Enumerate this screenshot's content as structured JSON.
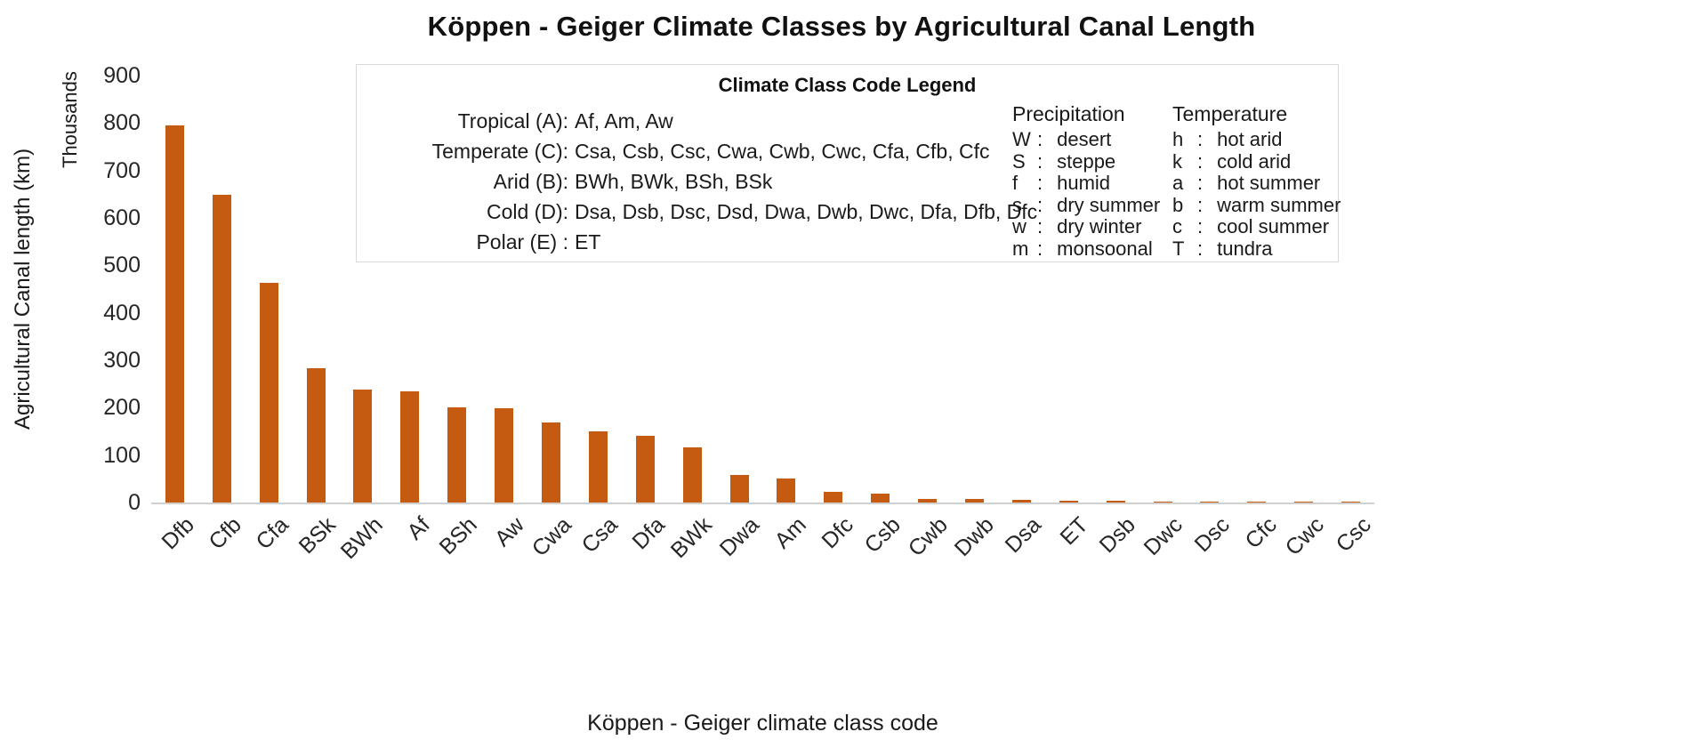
{
  "chart_data": {
    "type": "bar",
    "title": "Köppen - Geiger Climate Classes by Agricultural Canal Length",
    "xlabel": "Köppen - Geiger climate class code",
    "ylabel": "Agricultural Canal length (km)",
    "y_units_label": "Thousands",
    "ylim": [
      0,
      900
    ],
    "ytick_step": 100,
    "grid": false,
    "bar_color": "#C55A11",
    "categories": [
      "Dfb",
      "Cfb",
      "Cfa",
      "BSk",
      "BWh",
      "Af",
      "BSh",
      "Aw",
      "Cwa",
      "Csa",
      "Dfa",
      "BWk",
      "Dwa",
      "Am",
      "Dfc",
      "Csb",
      "Cwb",
      "Dwb",
      "Dsa",
      "ET",
      "Dsb",
      "Dwc",
      "Dsc",
      "Cfc",
      "Cwc",
      "Csc"
    ],
    "values": [
      795,
      648,
      464,
      284,
      238,
      235,
      200,
      199,
      168,
      150,
      141,
      116,
      59,
      51,
      22,
      19,
      8,
      7,
      5,
      4,
      4,
      2.5,
      2,
      2,
      1.5,
      1.5
    ]
  },
  "legend": {
    "title": "Climate Class Code Legend",
    "class_rows": [
      {
        "label": "Tropical (A):",
        "value": "Af, Am, Aw"
      },
      {
        "label": "Temperate (C):",
        "value": "Csa, Csb, Csc, Cwa, Cwb, Cwc, Cfa, Cfb, Cfc"
      },
      {
        "label": "Arid (B):",
        "value": "BWh, BWk, BSh, BSk"
      },
      {
        "label": "Cold (D):",
        "value": "Dsa, Dsb, Dsc, Dsd, Dwa, Dwb, Dwc, Dfa, Dfb, Dfc"
      },
      {
        "label": "Polar (E) :",
        "value": "ET"
      }
    ],
    "precipitation": {
      "header": "Precipitation",
      "rows": [
        {
          "code": "W",
          "desc": "desert"
        },
        {
          "code": "S",
          "desc": "steppe"
        },
        {
          "code": "f",
          "desc": "humid"
        },
        {
          "code": "s",
          "desc": "dry summer"
        },
        {
          "code": "w",
          "desc": "dry winter"
        },
        {
          "code": "m",
          "desc": "monsoonal"
        }
      ]
    },
    "temperature": {
      "header": "Temperature",
      "rows": [
        {
          "code": "h",
          "desc": "hot arid"
        },
        {
          "code": "k",
          "desc": "cold arid"
        },
        {
          "code": "a",
          "desc": "hot summer"
        },
        {
          "code": "b",
          "desc": "warm summer"
        },
        {
          "code": "c",
          "desc": "cool summer"
        },
        {
          "code": "T",
          "desc": "tundra"
        }
      ]
    }
  }
}
